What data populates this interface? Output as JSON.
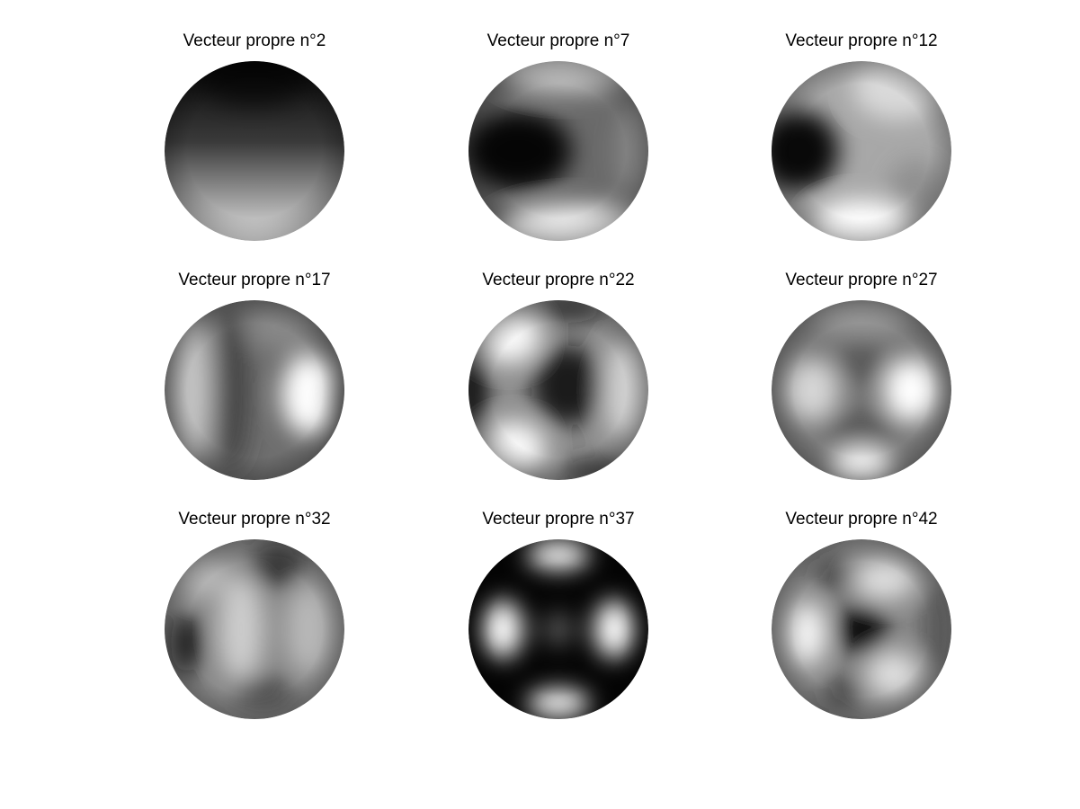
{
  "panels": [
    {
      "title": "Vecteur propre n°2"
    },
    {
      "title": "Vecteur propre n°7"
    },
    {
      "title": "Vecteur propre n°12"
    },
    {
      "title": "Vecteur propre n°17"
    },
    {
      "title": "Vecteur propre n°22"
    },
    {
      "title": "Vecteur propre n°27"
    },
    {
      "title": "Vecteur propre n°32"
    },
    {
      "title": "Vecteur propre n°37"
    },
    {
      "title": "Vecteur propre n°42"
    }
  ]
}
